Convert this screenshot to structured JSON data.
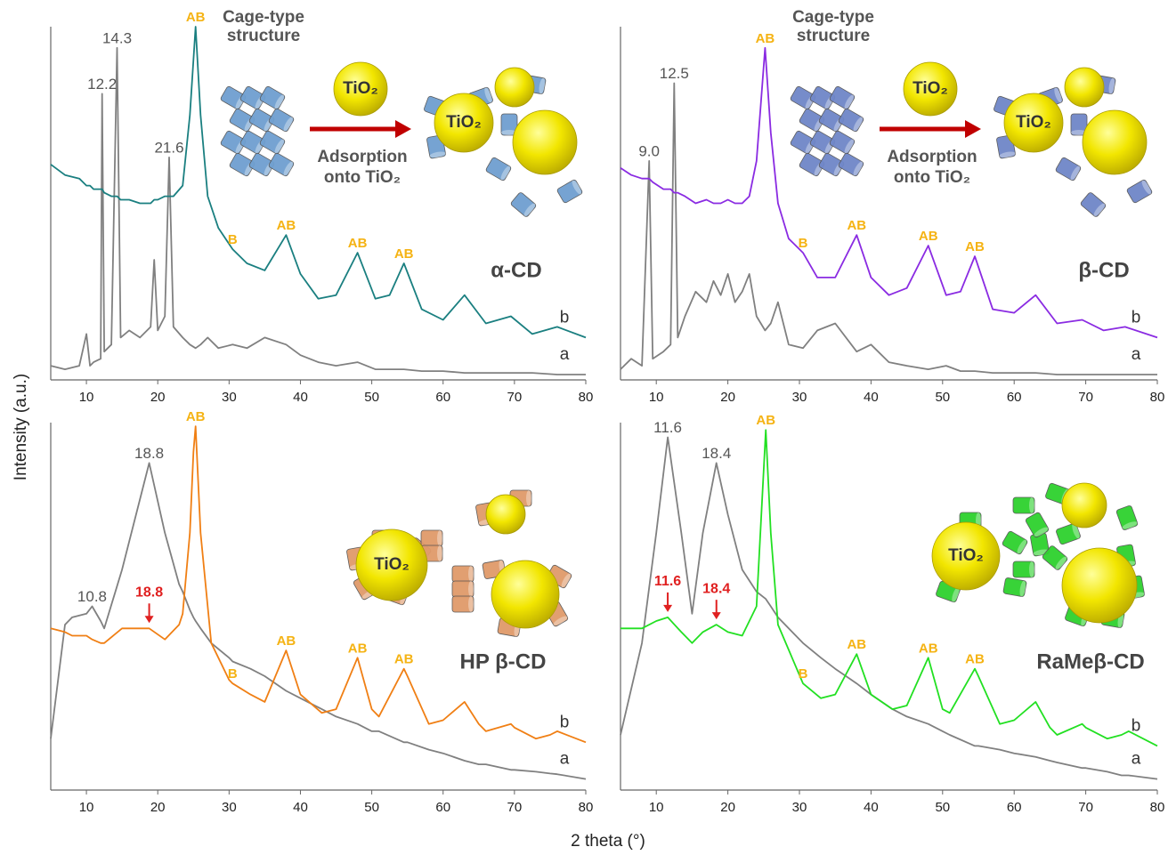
{
  "x_label": "2 theta (°)",
  "y_label": "Intensity (a.u.)",
  "chart_data": [
    {
      "type": "line",
      "label": "α-CD",
      "xlim": [
        5,
        80
      ],
      "xticks": [
        10,
        20,
        30,
        40,
        50,
        60,
        70,
        80
      ],
      "ylim": [
        0,
        100
      ],
      "illustration": {
        "kind": "adsorption",
        "color": "#6f9fd0",
        "title": [
          "Cage-type",
          "structure"
        ],
        "ball": "TiO₂",
        "caption": [
          "Adsorption",
          "onto TiO₂"
        ]
      },
      "x": [
        5,
        7,
        9,
        10,
        10.5,
        11,
        12,
        12.2,
        12.5,
        13.5,
        14.3,
        14.8,
        16,
        17.5,
        19,
        19.5,
        20,
        21,
        21.6,
        22.2,
        23.5,
        24.5,
        25.3,
        26,
        27,
        28.5,
        30.5,
        32.5,
        35,
        38,
        40,
        42.5,
        45,
        48,
        50.5,
        52.5,
        54.5,
        57,
        60,
        63,
        66,
        69.5,
        72.5,
        76,
        80
      ],
      "series": [
        {
          "name": "a",
          "color": "#808080",
          "values": [
            4,
            3,
            4,
            13,
            4,
            5,
            6,
            81,
            8,
            10,
            94,
            12,
            14,
            12,
            15,
            34,
            14,
            18,
            63,
            15,
            12,
            10,
            9,
            10,
            12,
            9,
            10,
            9,
            12,
            10,
            7,
            5,
            4,
            5,
            3,
            3,
            3,
            2.5,
            2.5,
            2,
            2,
            2,
            2,
            1.5,
            1.5
          ],
          "peak_labels": [
            {
              "x": 12.2,
              "label": "12.2"
            },
            {
              "x": 14.3,
              "label": "14.3"
            },
            {
              "x": 21.6,
              "label": "21.6"
            }
          ]
        },
        {
          "name": "b",
          "color": "#1a7f80",
          "values": [
            61,
            58,
            57,
            55,
            55,
            54,
            54,
            54,
            53,
            52,
            52,
            51,
            51,
            50,
            50,
            51,
            51,
            52,
            52,
            52,
            55,
            75,
            100,
            75,
            52,
            43,
            37,
            33,
            31,
            41,
            30,
            23,
            24,
            36,
            23,
            24,
            33,
            20,
            17,
            24,
            16,
            18,
            13,
            15,
            12
          ],
          "peak_labels": [
            {
              "x": 25.3,
              "label": "AB"
            },
            {
              "x": 30.5,
              "label": "B"
            },
            {
              "x": 38,
              "label": "AB"
            },
            {
              "x": 48,
              "label": "AB"
            },
            {
              "x": 54.5,
              "label": "AB"
            }
          ]
        }
      ]
    },
    {
      "type": "line",
      "label": "β-CD",
      "xlim": [
        5,
        80
      ],
      "xticks": [
        10,
        20,
        30,
        40,
        50,
        60,
        70,
        80
      ],
      "ylim": [
        0,
        100
      ],
      "illustration": {
        "kind": "adsorption",
        "color": "#6f86c8",
        "title": [
          "Cage-type",
          "structure"
        ],
        "ball": "TiO₂",
        "caption": [
          "Adsorption",
          "onto TiO₂"
        ]
      },
      "x": [
        5,
        6.5,
        8,
        9,
        9.5,
        11,
        12,
        12.5,
        13,
        14,
        15.5,
        17,
        18,
        19,
        20,
        21,
        22,
        23,
        24,
        25.2,
        26,
        27,
        28.5,
        30.5,
        32.5,
        35,
        38,
        40,
        42.5,
        45,
        48,
        50.5,
        52.5,
        54.5,
        57,
        60,
        63,
        66,
        69.5,
        72.5,
        75.5,
        80
      ],
      "series": [
        {
          "name": "a",
          "color": "#808080",
          "values": [
            3,
            6,
            4,
            62,
            6,
            8,
            10,
            84,
            12,
            18,
            25,
            22,
            28,
            24,
            30,
            22,
            25,
            30,
            18,
            14,
            16,
            22,
            10,
            9,
            14,
            16,
            8,
            10,
            5,
            4,
            3,
            4,
            2.5,
            2.5,
            2,
            2,
            2,
            1.5,
            1.5,
            1.5,
            1.5,
            1.5
          ],
          "peak_labels": [
            {
              "x": 9,
              "label": "9.0"
            },
            {
              "x": 12.5,
              "label": "12.5"
            }
          ]
        },
        {
          "name": "b",
          "color": "#8a2be2",
          "values": [
            60,
            58,
            57,
            57,
            56,
            54,
            54,
            53,
            53,
            52,
            50,
            51,
            50,
            50,
            51,
            50,
            50,
            52,
            62,
            94,
            70,
            50,
            40,
            36,
            29,
            29,
            41,
            29,
            24,
            26,
            38,
            24,
            25,
            35,
            20,
            19,
            24,
            16,
            17,
            14,
            15,
            12
          ],
          "peak_labels": [
            {
              "x": 25.2,
              "label": "AB"
            },
            {
              "x": 30.5,
              "label": "B"
            },
            {
              "x": 38,
              "label": "AB"
            },
            {
              "x": 48,
              "label": "AB"
            },
            {
              "x": 54.5,
              "label": "AB"
            }
          ]
        }
      ]
    },
    {
      "type": "line",
      "label": "HP β-CD",
      "xlim": [
        5,
        80
      ],
      "xticks": [
        10,
        20,
        30,
        40,
        50,
        60,
        70,
        80
      ],
      "ylim": [
        0,
        100
      ],
      "illustration": {
        "kind": "dispersed",
        "color": "#e09a6a",
        "ball": "TiO₂"
      },
      "x": [
        5,
        7,
        8,
        10,
        10.8,
        12,
        12.5,
        15,
        18.8,
        21,
        23,
        23.5,
        24.5,
        25,
        25.3,
        26,
        27.5,
        30,
        30.5,
        33,
        35,
        38,
        40,
        43,
        45,
        48,
        50,
        51,
        54.5,
        55,
        58,
        60,
        63,
        65,
        66,
        69.5,
        70,
        73,
        75,
        76,
        80
      ],
      "series": [
        {
          "name": "a",
          "color": "#808080",
          "values": [
            14,
            45,
            47,
            48,
            50,
            46,
            44,
            60,
            89,
            70,
            56,
            54,
            49,
            47,
            46,
            44,
            40,
            36,
            35,
            33,
            31,
            27,
            25,
            22,
            20,
            18,
            16,
            16,
            13,
            13,
            11,
            10,
            8,
            7,
            7,
            5.5,
            5.5,
            5,
            4.5,
            4.3,
            3
          ],
          "peak_labels": [
            {
              "x": 10.8,
              "label": "10.8"
            },
            {
              "x": 18.8,
              "label": "18.8"
            }
          ]
        },
        {
          "name": "b",
          "color": "#f07f14",
          "values": [
            44,
            43,
            42,
            42,
            41,
            40,
            40,
            44,
            44,
            41,
            45,
            48,
            70,
            92,
            99,
            70,
            40,
            30,
            29,
            26,
            24,
            38,
            26,
            21,
            22,
            36,
            22,
            20,
            33,
            31,
            18,
            19,
            24,
            18,
            16,
            18,
            17,
            14,
            15,
            16,
            13
          ],
          "arrow_labels": [
            {
              "x": 18.8,
              "label": "18.8"
            }
          ],
          "peak_labels": [
            {
              "x": 25.3,
              "label": "AB"
            },
            {
              "x": 30.5,
              "label": "B"
            },
            {
              "x": 38,
              "label": "AB"
            },
            {
              "x": 48,
              "label": "AB"
            },
            {
              "x": 54.5,
              "label": "AB"
            }
          ]
        }
      ]
    },
    {
      "type": "line",
      "label": "RaMeβ-CD",
      "xlim": [
        5,
        80
      ],
      "xticks": [
        10,
        20,
        30,
        40,
        50,
        60,
        70,
        80
      ],
      "ylim": [
        0,
        100
      ],
      "illustration": {
        "kind": "dispersed",
        "color": "#2ed12e",
        "ball": "TiO₂"
      },
      "x": [
        5,
        8,
        10,
        11.6,
        13.5,
        15,
        16.5,
        18.4,
        20,
        22,
        24,
        25.3,
        26,
        27,
        30.5,
        33,
        35,
        38,
        40,
        43,
        45,
        48,
        50,
        51,
        54.5,
        55,
        58,
        60,
        63,
        65,
        66,
        69.5,
        70,
        73,
        75,
        76,
        80
      ],
      "series": [
        {
          "name": "a",
          "color": "#808080",
          "values": [
            15,
            40,
            70,
            96,
            70,
            48,
            70,
            89,
            75,
            60,
            54,
            52,
            50,
            47,
            40,
            36,
            33,
            29,
            26,
            22,
            20,
            18,
            16,
            15,
            12,
            12,
            11,
            10,
            9,
            8,
            7.5,
            6,
            6,
            5,
            4,
            4,
            3
          ],
          "peak_labels": [
            {
              "x": 11.6,
              "label": "11.6"
            },
            {
              "x": 18.4,
              "label": "18.4"
            }
          ]
        },
        {
          "name": "b",
          "color": "#22e022",
          "values": [
            44,
            44,
            46,
            47,
            43,
            40,
            43,
            45,
            43,
            42,
            50,
            98,
            70,
            45,
            29,
            25,
            26,
            37,
            26,
            22,
            23,
            36,
            22,
            21,
            33,
            31,
            18,
            19,
            24,
            17,
            15,
            18,
            17,
            14,
            15,
            16,
            12
          ],
          "arrow_labels": [
            {
              "x": 11.6,
              "label": "11.6"
            },
            {
              "x": 18.4,
              "label": "18.4"
            }
          ],
          "peak_labels": [
            {
              "x": 25.3,
              "label": "AB"
            },
            {
              "x": 30.5,
              "label": "B"
            },
            {
              "x": 38,
              "label": "AB"
            },
            {
              "x": 48,
              "label": "AB"
            },
            {
              "x": 54.5,
              "label": "AB"
            }
          ]
        }
      ]
    }
  ]
}
